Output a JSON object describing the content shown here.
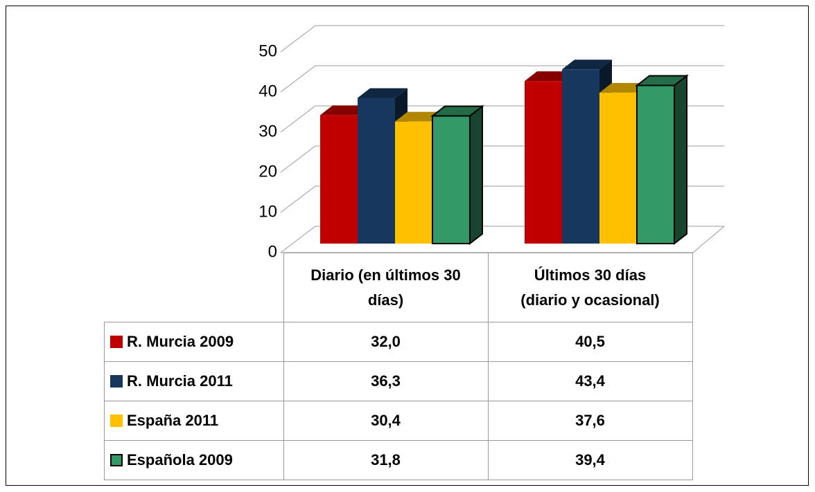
{
  "chart_data": {
    "type": "bar3d",
    "categories": [
      "Diario (en últimos 30 días)",
      "Últimos 30 días (diario y ocasional)"
    ],
    "series": [
      {
        "name": "R. Murcia 2009",
        "color": "#c00000",
        "values": [
          32.0,
          40.5
        ],
        "value_labels": [
          "32,0",
          "40,5"
        ]
      },
      {
        "name": "R. Murcia 2011",
        "color": "#17375e",
        "values": [
          36.3,
          43.4
        ],
        "value_labels": [
          "36,3",
          "43,4"
        ]
      },
      {
        "name": "España 2011",
        "color": "#ffc000",
        "values": [
          30.4,
          37.6
        ],
        "value_labels": [
          "30,4",
          "37,6"
        ]
      },
      {
        "name": "Española 2009",
        "color": "#339966",
        "values": [
          31.8,
          39.4
        ],
        "value_labels": [
          "31,8",
          "39,4"
        ]
      }
    ],
    "ylim": [
      0,
      50
    ],
    "yticks": [
      0,
      10,
      20,
      30,
      40,
      50
    ],
    "grid": true
  }
}
